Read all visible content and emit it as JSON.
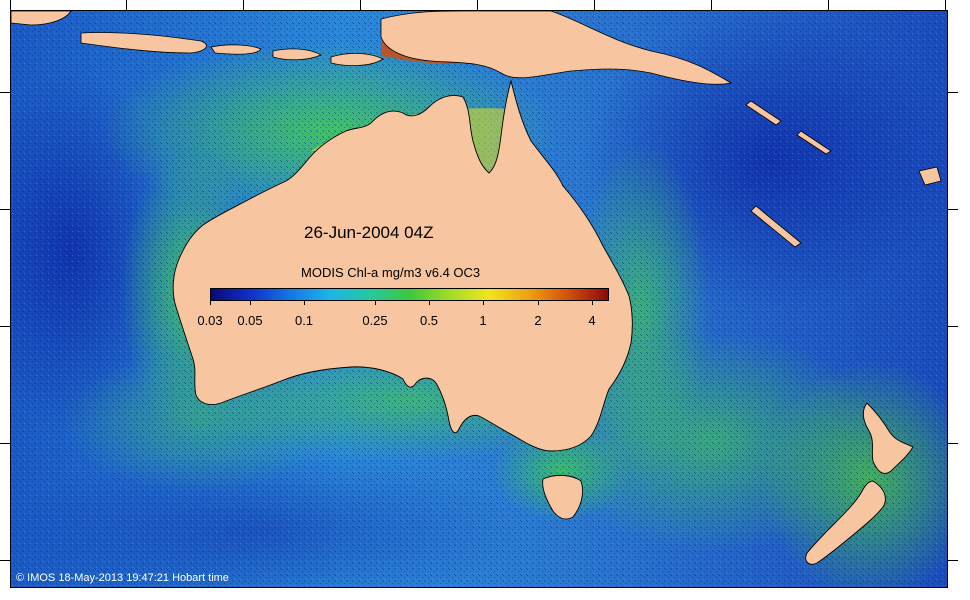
{
  "map": {
    "title": "26-Jun-2004 04Z",
    "colorbar": {
      "title": "MODIS Chl-a mg/m3 v6.4 OC3",
      "unit": "mg/m3",
      "scale": "log",
      "range": [
        0.03,
        5
      ],
      "tick_labels": [
        "0.03",
        "0.05",
        "0.1",
        "0.25",
        "0.5",
        "1",
        "2",
        "4"
      ],
      "tick_values": [
        0.03,
        0.05,
        0.1,
        0.25,
        0.5,
        1,
        2,
        4
      ],
      "palette": [
        "#0a0a78",
        "#1030c8",
        "#1478e6",
        "#1eb4e6",
        "#28c8a0",
        "#3cc83c",
        "#a0dc28",
        "#f0e61e",
        "#f0a014",
        "#d2500a",
        "#8c0a0a"
      ]
    },
    "copyright": "© IMOS 18-May-2013 19:47:21 Hobart time",
    "colors": {
      "land": "#f7c59f",
      "deep_ocean": "#1e64c8",
      "shelf_ocean": "#3cbe78",
      "high_chl": "#d2640a"
    },
    "regions": [
      "Australia",
      "Tasmania",
      "New Zealand",
      "New Guinea",
      "Indonesia"
    ]
  }
}
